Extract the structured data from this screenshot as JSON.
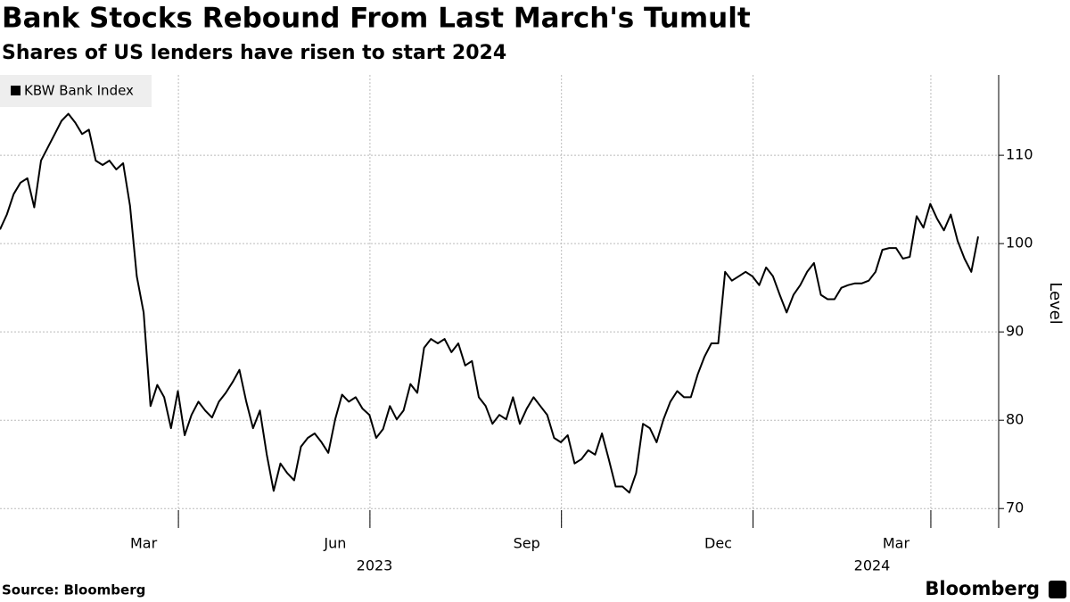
{
  "chart_data": {
    "type": "line",
    "title": "Bank Stocks Rebound From Last March's Tumult",
    "subtitle": "Shares of US lenders have risen to start 2024",
    "y_axis_label": "Level",
    "source": "Source: Bloomberg",
    "brand": "Bloomberg",
    "year_labels": [
      "2023",
      "2024"
    ],
    "categories": [
      null,
      null,
      null,
      null,
      null,
      null,
      null,
      null,
      null,
      null,
      null,
      null,
      null,
      null,
      null,
      null,
      null,
      null,
      null,
      null,
      null,
      "Mar",
      null,
      null,
      null,
      null,
      null,
      null,
      null,
      null,
      null,
      null,
      null,
      null,
      null,
      null,
      null,
      null,
      null,
      null,
      null,
      null,
      null,
      null,
      null,
      null,
      null,
      null,
      null,
      "Jun",
      null,
      null,
      null,
      null,
      null,
      null,
      null,
      null,
      null,
      null,
      null,
      null,
      null,
      null,
      null,
      null,
      null,
      null,
      null,
      null,
      null,
      null,
      null,
      null,
      null,
      null,
      null,
      "Sep",
      null,
      null,
      null,
      null,
      null,
      null,
      null,
      null,
      null,
      null,
      null,
      null,
      null,
      null,
      null,
      null,
      null,
      null,
      null,
      null,
      null,
      null,
      null,
      null,
      null,
      null,
      null,
      "Dec",
      null,
      null,
      null,
      null,
      null,
      null,
      null,
      null,
      null,
      null,
      null,
      null,
      null,
      null,
      null,
      null,
      null,
      null,
      null,
      null,
      null,
      null,
      null,
      null,
      null,
      "Mar",
      null,
      null,
      null,
      null,
      null,
      null,
      null,
      null,
      null,
      null,
      null,
      null
    ],
    "series": [
      {
        "name": "KBW Bank Index",
        "color": "#000000",
        "values": [
          101.6,
          103.3,
          105.6,
          106.9,
          107.4,
          104.1,
          109.4,
          110.9,
          112.4,
          113.9,
          114.7,
          113.7,
          112.4,
          112.9,
          109.4,
          108.9,
          109.4,
          108.4,
          109.1,
          104.3,
          96.3,
          92.2,
          81.6,
          84.0,
          82.6,
          79.1,
          83.3,
          78.3,
          80.6,
          82.1,
          81.1,
          80.3,
          82.1,
          83.1,
          84.3,
          85.7,
          82.1,
          79.1,
          81.1,
          76.1,
          72.0,
          75.1,
          74.0,
          73.2,
          77.0,
          78.0,
          78.5,
          77.5,
          76.3,
          80.1,
          82.9,
          82.1,
          82.6,
          81.3,
          80.6,
          78.0,
          79.0,
          81.6,
          80.1,
          81.1,
          84.1,
          83.1,
          88.2,
          89.2,
          88.7,
          89.2,
          87.7,
          88.7,
          86.2,
          86.7,
          82.6,
          81.6,
          79.6,
          80.6,
          80.1,
          82.6,
          79.6,
          81.3,
          82.6,
          81.6,
          80.6,
          78.0,
          77.5,
          78.3,
          75.1,
          75.6,
          76.6,
          76.1,
          78.5,
          75.6,
          72.5,
          72.5,
          71.8,
          74.0,
          79.6,
          79.1,
          77.5,
          80.1,
          82.1,
          83.3,
          82.6,
          82.6,
          85.2,
          87.2,
          88.7,
          88.7,
          96.8,
          95.8,
          96.3,
          96.8,
          96.3,
          95.3,
          97.3,
          96.3,
          94.2,
          92.2,
          94.2,
          95.3,
          96.8,
          97.8,
          94.2,
          93.7,
          93.7,
          95.0,
          95.3,
          95.5,
          95.5,
          95.8,
          96.8,
          99.3,
          99.5,
          99.5,
          98.3,
          98.5,
          103.1,
          101.8,
          104.5,
          102.8,
          101.5,
          103.3,
          100.3,
          98.3,
          96.8,
          100.8
        ]
      }
    ],
    "ylim": [
      67.8,
      119.1
    ],
    "yticks": [
      70,
      80,
      90,
      100,
      110
    ],
    "grid": true,
    "legend": "top-left"
  }
}
